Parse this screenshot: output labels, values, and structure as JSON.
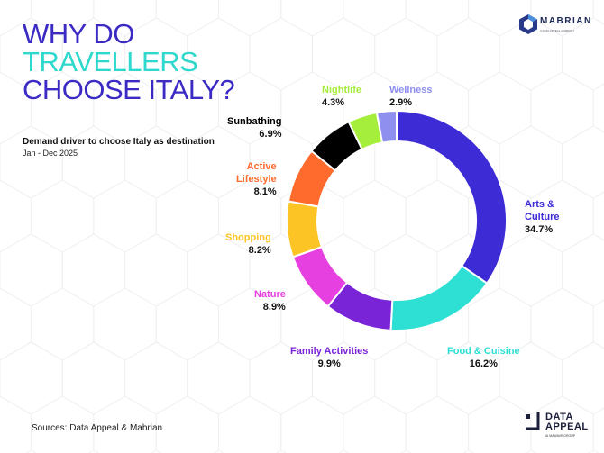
{
  "header": {
    "title_line1": "WHY DO",
    "title_line2": "TRAVELLERS",
    "title_line3": "CHOOSE ITALY?",
    "subtitle": "Demand driver to choose Italy as destination",
    "period": "Jan - Dec 2025"
  },
  "logos": {
    "mabrian": "MABRIAN",
    "mabrian_tag": "A DATA APPEAL COMPANY",
    "data_appeal_line1": "DATA",
    "data_appeal_line2": "APPEAL",
    "data_appeal_tag": "AI MAWAVE GROUP"
  },
  "footer": {
    "sources": "Sources: Data Appeal & Mabrian"
  },
  "chart_data": {
    "type": "pie",
    "variant": "donut",
    "title": "Demand driver to choose Italy as destination",
    "categories": [
      "Arts & Culture",
      "Food & Cuisine",
      "Family Activities",
      "Nature",
      "Shopping",
      "Active Lifestyle",
      "Sunbathing",
      "Nightlife",
      "Wellness"
    ],
    "values": [
      34.7,
      16.2,
      9.9,
      8.9,
      8.2,
      8.1,
      6.9,
      4.3,
      2.9
    ],
    "labels": [
      "34.7%",
      "16.2%",
      "9.9%",
      "8.9%",
      "8.2%",
      "8.1%",
      "6.9%",
      "4.3%",
      "2.9%"
    ],
    "colors": [
      "#3d2bd6",
      "#2ee0d3",
      "#7a24d8",
      "#e640e0",
      "#fcc525",
      "#ff6b2c",
      "#000000",
      "#a6ee3c",
      "#8f8ff0"
    ],
    "legend": "none"
  }
}
